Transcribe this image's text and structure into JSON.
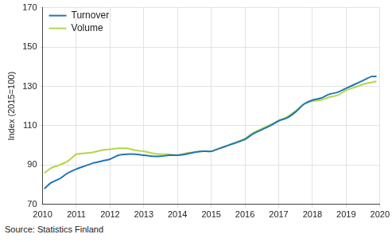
{
  "chart_data": {
    "type": "line",
    "y_label": "Index (2015=100)",
    "source": "Source: Statistics Finland",
    "x": [
      2010.05,
      2010.25,
      2010.5,
      2010.75,
      2011.0,
      2011.25,
      2011.5,
      2011.75,
      2012.0,
      2012.25,
      2012.5,
      2012.75,
      2013.0,
      2013.25,
      2013.5,
      2013.75,
      2014.0,
      2014.25,
      2014.5,
      2014.75,
      2015.0,
      2015.25,
      2015.5,
      2015.75,
      2016.0,
      2016.25,
      2016.5,
      2016.75,
      2017.0,
      2017.25,
      2017.5,
      2017.75,
      2018.0,
      2018.25,
      2018.5,
      2018.75,
      2019.0,
      2019.25,
      2019.5,
      2019.75,
      2019.9
    ],
    "series": [
      {
        "name": "Turnover",
        "color": "#1f77b4",
        "values": [
          78,
          81,
          83,
          86,
          88,
          89.5,
          91,
          92,
          93,
          95,
          95.5,
          95.5,
          95,
          94.5,
          94.5,
          95,
          95,
          95.5,
          96.5,
          97,
          97,
          98.5,
          100,
          101.5,
          103,
          106,
          108,
          110,
          112.5,
          114,
          117,
          121,
          123,
          124,
          126,
          127,
          129,
          131,
          133,
          135,
          135
        ]
      },
      {
        "name": "Volume",
        "color": "#b5d64a",
        "values": [
          86,
          88.5,
          90,
          92,
          95.5,
          96,
          96.5,
          97.5,
          98,
          98.5,
          98.5,
          97.5,
          97,
          96,
          95.5,
          95.5,
          95,
          96,
          96.5,
          97,
          97,
          98.5,
          100,
          101.5,
          103.5,
          106.5,
          108.5,
          110.5,
          112.5,
          114.5,
          117.5,
          121,
          122.5,
          123,
          124.5,
          125.5,
          128,
          129.5,
          131,
          132,
          132.5
        ]
      }
    ],
    "xlim": [
      2010,
      2020
    ],
    "xticks": [
      2010,
      2011,
      2012,
      2013,
      2014,
      2015,
      2016,
      2017,
      2018,
      2019,
      2020
    ],
    "ylim": [
      70,
      170
    ],
    "yticks": [
      70,
      90,
      110,
      130,
      150,
      170
    ],
    "grid": true,
    "legend": "upper left"
  }
}
